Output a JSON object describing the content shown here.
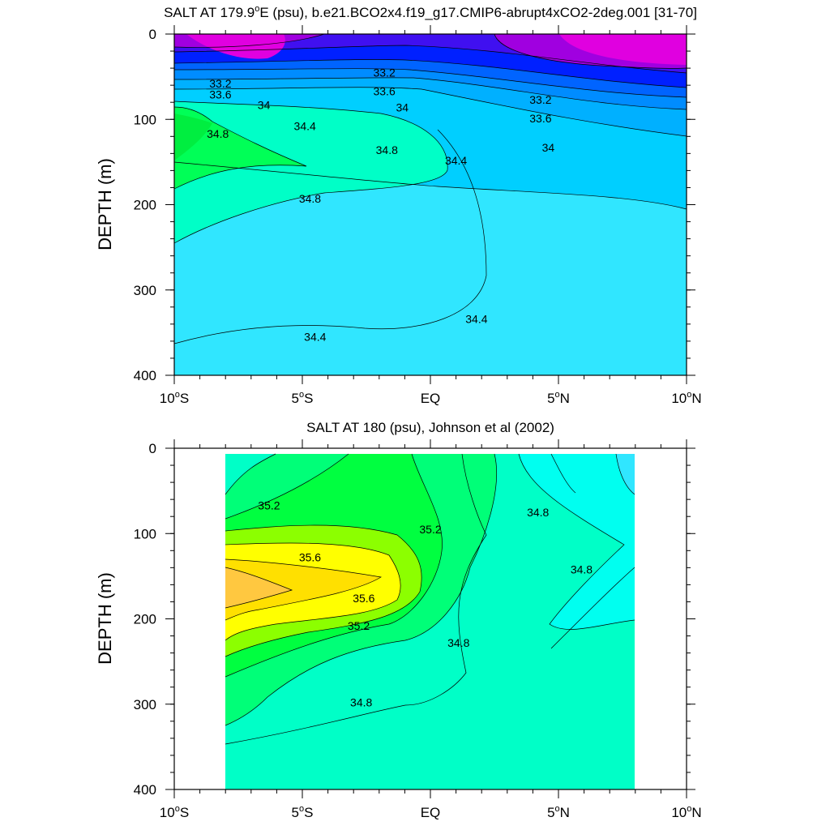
{
  "chart_data": [
    {
      "type": "contour",
      "title_prefix": "SALT AT 179.9",
      "title_sup": "o",
      "title_suffix": "E (psu), b.e21.BCO2x4.f19_g17.CMIP6-abrupt4xCO2-2deg.001 [31-70]",
      "ylabel": "DEPTH (m)",
      "xlim": [
        -10,
        10
      ],
      "ylim": [
        0,
        400
      ],
      "y_inverted": true,
      "xticks": [
        {
          "value": -10,
          "label": "10",
          "sup": "o",
          "suffix": "S"
        },
        {
          "value": -5,
          "label": "5",
          "sup": "o",
          "suffix": "S"
        },
        {
          "value": 0,
          "label": "EQ",
          "sup": "",
          "suffix": ""
        },
        {
          "value": 5,
          "label": "5",
          "sup": "o",
          "suffix": "N"
        },
        {
          "value": 10,
          "label": "10",
          "sup": "o",
          "suffix": "N"
        }
      ],
      "yticks": [
        {
          "value": 0,
          "label": "0"
        },
        {
          "value": 100,
          "label": "100"
        },
        {
          "value": 200,
          "label": "200"
        },
        {
          "value": 300,
          "label": "300"
        },
        {
          "value": 400,
          "label": "400"
        }
      ],
      "contour_labels": [
        {
          "text": "33.2",
          "lon": -8.2,
          "depth": 58
        },
        {
          "text": "33.6",
          "lon": -8.2,
          "depth": 71
        },
        {
          "text": "34",
          "lon": -6.5,
          "depth": 83
        },
        {
          "text": "34.8",
          "lon": -8.3,
          "depth": 117
        },
        {
          "text": "33.2",
          "lon": -1.8,
          "depth": 45
        },
        {
          "text": "33.6",
          "lon": -1.8,
          "depth": 67
        },
        {
          "text": "34",
          "lon": -1.1,
          "depth": 86
        },
        {
          "text": "34.4",
          "lon": -4.9,
          "depth": 108
        },
        {
          "text": "34.8",
          "lon": -1.7,
          "depth": 136
        },
        {
          "text": "34.4",
          "lon": 1.0,
          "depth": 148
        },
        {
          "text": "34.8",
          "lon": -4.7,
          "depth": 193
        },
        {
          "text": "33.2",
          "lon": 4.3,
          "depth": 77
        },
        {
          "text": "33.6",
          "lon": 4.3,
          "depth": 99
        },
        {
          "text": "34",
          "lon": 4.6,
          "depth": 133
        },
        {
          "text": "34.4",
          "lon": 1.8,
          "depth": 334
        },
        {
          "text": "34.4",
          "lon": -4.5,
          "depth": 355
        }
      ]
    },
    {
      "type": "contour",
      "title_prefix": "SALT AT 180 (psu), Johnson et al (2002)",
      "title_sup": "",
      "title_suffix": "",
      "ylabel": "DEPTH (m)",
      "xlim": [
        -10,
        10
      ],
      "ylim": [
        0,
        400
      ],
      "y_inverted": true,
      "data_lon_range": [
        -8,
        8
      ],
      "xticks": [
        {
          "value": -10,
          "label": "10",
          "sup": "o",
          "suffix": "S"
        },
        {
          "value": -5,
          "label": "5",
          "sup": "o",
          "suffix": "S"
        },
        {
          "value": 0,
          "label": "EQ",
          "sup": "",
          "suffix": ""
        },
        {
          "value": 5,
          "label": "5",
          "sup": "o",
          "suffix": "N"
        },
        {
          "value": 10,
          "label": "10",
          "sup": "o",
          "suffix": "N"
        }
      ],
      "yticks": [
        {
          "value": 0,
          "label": "0"
        },
        {
          "value": 100,
          "label": "100"
        },
        {
          "value": 200,
          "label": "200"
        },
        {
          "value": 300,
          "label": "300"
        },
        {
          "value": 400,
          "label": "400"
        }
      ],
      "contour_labels": [
        {
          "text": "35.2",
          "lon": -6.3,
          "depth": 67
        },
        {
          "text": "35.6",
          "lon": -4.7,
          "depth": 128
        },
        {
          "text": "35.6",
          "lon": -2.6,
          "depth": 176
        },
        {
          "text": "35.2",
          "lon": -2.8,
          "depth": 208
        },
        {
          "text": "35.2",
          "lon": 0.0,
          "depth": 95
        },
        {
          "text": "34.8",
          "lon": 4.2,
          "depth": 75
        },
        {
          "text": "34.8",
          "lon": 5.9,
          "depth": 142
        },
        {
          "text": "34.8",
          "lon": 1.1,
          "depth": 228
        },
        {
          "text": "34.8",
          "lon": -2.7,
          "depth": 298
        }
      ]
    }
  ]
}
